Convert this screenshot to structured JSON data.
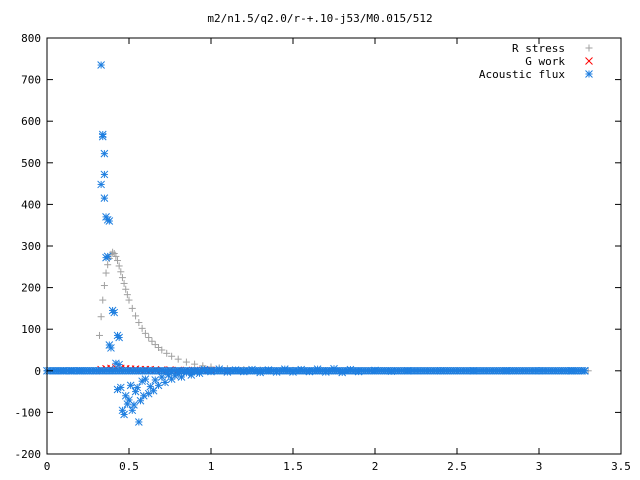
{
  "chart_data": {
    "type": "scatter",
    "title": "m2/n1.5/q2.0/r-+.10-j53/M0.015/512",
    "xlabel": "",
    "ylabel": "",
    "xlim": [
      0,
      3.5
    ],
    "ylim": [
      -200,
      800
    ],
    "x_ticks": [
      "0",
      "0.5",
      "1",
      "1.5",
      "2",
      "2.5",
      "3",
      "3.5"
    ],
    "y_ticks": [
      "-200",
      "-100",
      "0",
      "100",
      "200",
      "300",
      "400",
      "500",
      "600",
      "700",
      "800"
    ],
    "grid": false,
    "legend_position": "top-right",
    "series": [
      {
        "name": "R stress",
        "marker": "plus",
        "color": "#a0a0a0",
        "points": [
          [
            0.0,
            0
          ],
          [
            0.1,
            0
          ],
          [
            0.2,
            0
          ],
          [
            0.3,
            0
          ],
          [
            0.32,
            85
          ],
          [
            0.33,
            130
          ],
          [
            0.34,
            170
          ],
          [
            0.35,
            205
          ],
          [
            0.36,
            235
          ],
          [
            0.37,
            255
          ],
          [
            0.38,
            270
          ],
          [
            0.39,
            280
          ],
          [
            0.4,
            285
          ],
          [
            0.41,
            282
          ],
          [
            0.42,
            275
          ],
          [
            0.43,
            265
          ],
          [
            0.44,
            252
          ],
          [
            0.45,
            238
          ],
          [
            0.46,
            224
          ],
          [
            0.47,
            210
          ],
          [
            0.48,
            196
          ],
          [
            0.49,
            183
          ],
          [
            0.5,
            170
          ],
          [
            0.52,
            150
          ],
          [
            0.54,
            132
          ],
          [
            0.56,
            116
          ],
          [
            0.58,
            102
          ],
          [
            0.6,
            90
          ],
          [
            0.62,
            80
          ],
          [
            0.64,
            71
          ],
          [
            0.66,
            63
          ],
          [
            0.68,
            56
          ],
          [
            0.7,
            50
          ],
          [
            0.73,
            42
          ],
          [
            0.76,
            35
          ],
          [
            0.8,
            28
          ],
          [
            0.85,
            21
          ],
          [
            0.9,
            16
          ],
          [
            0.95,
            12
          ],
          [
            1.0,
            9
          ],
          [
            1.05,
            7
          ],
          [
            1.1,
            5
          ],
          [
            1.2,
            3
          ],
          [
            1.3,
            2
          ],
          [
            1.5,
            1
          ],
          [
            1.7,
            0.5
          ],
          [
            2.0,
            0
          ],
          [
            2.5,
            0
          ],
          [
            3.0,
            0
          ],
          [
            3.3,
            0
          ]
        ]
      },
      {
        "name": "G work",
        "marker": "cross",
        "color": "#ff0000",
        "points": [
          [
            0.3,
            0
          ],
          [
            0.33,
            3
          ],
          [
            0.36,
            5
          ],
          [
            0.39,
            6
          ],
          [
            0.42,
            7
          ],
          [
            0.45,
            6
          ],
          [
            0.48,
            5
          ],
          [
            0.51,
            4
          ],
          [
            0.54,
            4
          ],
          [
            0.57,
            3
          ],
          [
            0.6,
            3
          ],
          [
            0.63,
            3
          ],
          [
            0.66,
            2
          ],
          [
            0.7,
            2
          ],
          [
            0.75,
            2
          ],
          [
            0.8,
            1
          ],
          [
            0.85,
            1
          ],
          [
            0.9,
            1
          ],
          [
            0.95,
            1
          ],
          [
            1.0,
            1
          ],
          [
            1.1,
            0
          ],
          [
            1.2,
            0
          ]
        ]
      },
      {
        "name": "Acoustic flux",
        "marker": "star",
        "color": "#1f7fe0",
        "points": [
          [
            0.0,
            0
          ],
          [
            0.05,
            0
          ],
          [
            0.1,
            0
          ],
          [
            0.15,
            0
          ],
          [
            0.2,
            0
          ],
          [
            0.25,
            0
          ],
          [
            0.3,
            0
          ],
          [
            0.33,
            735
          ],
          [
            0.33,
            448
          ],
          [
            0.34,
            568
          ],
          [
            0.34,
            563
          ],
          [
            0.35,
            522
          ],
          [
            0.35,
            472
          ],
          [
            0.35,
            415
          ],
          [
            0.36,
            370
          ],
          [
            0.37,
            363
          ],
          [
            0.38,
            360
          ],
          [
            0.37,
            275
          ],
          [
            0.36,
            272
          ],
          [
            0.4,
            145
          ],
          [
            0.41,
            140
          ],
          [
            0.38,
            62
          ],
          [
            0.39,
            55
          ],
          [
            0.43,
            85
          ],
          [
            0.44,
            80
          ],
          [
            0.42,
            18
          ],
          [
            0.44,
            15
          ],
          [
            0.45,
            -40
          ],
          [
            0.43,
            -45
          ],
          [
            0.46,
            -95
          ],
          [
            0.47,
            -105
          ],
          [
            0.48,
            -60
          ],
          [
            0.49,
            -80
          ],
          [
            0.5,
            -70
          ],
          [
            0.51,
            -35
          ],
          [
            0.52,
            -95
          ],
          [
            0.53,
            -82
          ],
          [
            0.54,
            -50
          ],
          [
            0.55,
            -40
          ],
          [
            0.56,
            -123
          ],
          [
            0.57,
            -72
          ],
          [
            0.58,
            -25
          ],
          [
            0.59,
            -60
          ],
          [
            0.6,
            -20
          ],
          [
            0.62,
            -55
          ],
          [
            0.63,
            -38
          ],
          [
            0.65,
            -48
          ],
          [
            0.66,
            -22
          ],
          [
            0.68,
            -35
          ],
          [
            0.7,
            -15
          ],
          [
            0.72,
            -28
          ],
          [
            0.74,
            -10
          ],
          [
            0.76,
            -20
          ],
          [
            0.78,
            -12
          ],
          [
            0.8,
            -8
          ],
          [
            0.82,
            -15
          ],
          [
            0.85,
            -5
          ],
          [
            0.88,
            -10
          ],
          [
            0.9,
            -3
          ],
          [
            0.93,
            -6
          ],
          [
            0.96,
            3
          ],
          [
            1.0,
            -2
          ],
          [
            1.05,
            4
          ],
          [
            1.1,
            -3
          ],
          [
            1.15,
            2
          ],
          [
            1.2,
            -2
          ],
          [
            1.25,
            3
          ],
          [
            1.3,
            -4
          ],
          [
            1.35,
            2
          ],
          [
            1.4,
            -3
          ],
          [
            1.45,
            4
          ],
          [
            1.5,
            -3
          ],
          [
            1.55,
            3
          ],
          [
            1.6,
            -2
          ],
          [
            1.65,
            4
          ],
          [
            1.7,
            -3
          ],
          [
            1.75,
            5
          ],
          [
            1.8,
            -4
          ],
          [
            1.85,
            3
          ],
          [
            1.9,
            -2
          ],
          [
            2.0,
            1
          ],
          [
            2.1,
            -1
          ],
          [
            2.2,
            0
          ],
          [
            2.4,
            0
          ],
          [
            2.6,
            0
          ],
          [
            2.8,
            0
          ],
          [
            3.0,
            0
          ],
          [
            3.2,
            0
          ],
          [
            3.28,
            0
          ]
        ]
      }
    ]
  }
}
